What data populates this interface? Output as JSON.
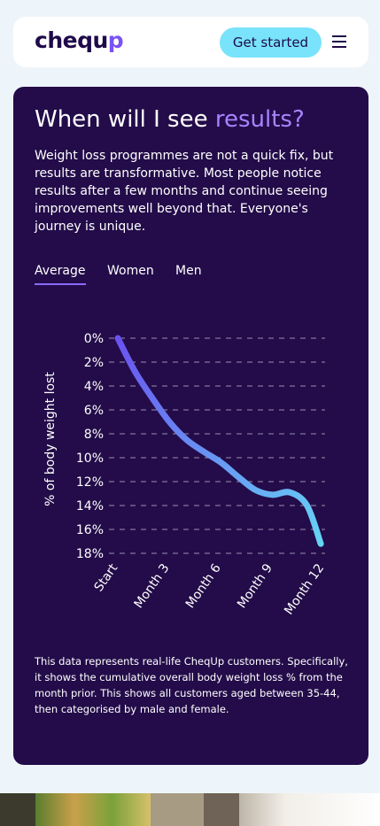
{
  "header": {
    "logo_main": "chequ",
    "logo_accent": "p",
    "cta_label": "Get started",
    "menu_icon": "hamburger-menu-icon"
  },
  "results": {
    "title_main": "When will I see ",
    "title_highlight": "results?",
    "intro": "Weight loss programmes are not a quick fix, but results are transformative. Most people notice results after a few months and continue seeing improvements well beyond that. Everyone's journey is unique.",
    "tabs": [
      {
        "label": "Average",
        "active": true
      },
      {
        "label": "Women",
        "active": false
      },
      {
        "label": "Men",
        "active": false
      }
    ],
    "note": "This data represents real-life CheqUp customers. Specifically, it shows the cumulative overall body weight loss % from the month prior. This shows all customers aged between 35-44, then categorised by male and female."
  },
  "chart_data": {
    "type": "line",
    "ylabel": "% of body weight lost",
    "yticks": [
      "0%",
      "2%",
      "4%",
      "6%",
      "8%",
      "10%",
      "12%",
      "14%",
      "16%",
      "18%"
    ],
    "ylim": [
      0,
      18
    ],
    "y_inverted": true,
    "grid": "horizontal dashed",
    "xticks": [
      "Start",
      "Month 3",
      "Month 6",
      "Month 9",
      "Month 12"
    ],
    "xlim": [
      0,
      12
    ],
    "series": [
      {
        "x": [
          0,
          1,
          2,
          3,
          4,
          5,
          6,
          7,
          8,
          9,
          10,
          11,
          11.8
        ],
        "y": [
          0,
          2.8,
          5.0,
          7.0,
          8.5,
          9.5,
          10.4,
          11.6,
          12.7,
          13.1,
          12.9,
          14.0,
          17.2
        ]
      }
    ],
    "gradient": {
      "start": "#6a52f0",
      "end": "#66d4f5"
    }
  },
  "colors": {
    "card_bg": "#230c49",
    "highlight": "#a783ff",
    "cta_bg": "#79e3fb",
    "page_bg": "#eef5fa"
  }
}
